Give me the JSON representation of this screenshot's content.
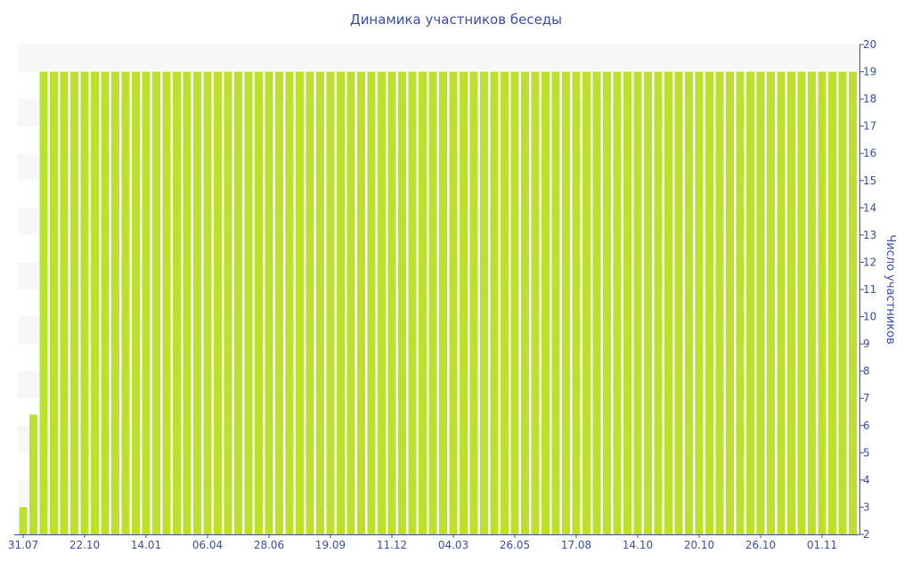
{
  "chart_data": {
    "type": "bar",
    "title": "Динамика участников беседы",
    "xlabel": "",
    "ylabel": "Число участников",
    "ylim": [
      2,
      20
    ],
    "yticks": [
      2,
      3,
      4,
      5,
      6,
      7,
      8,
      9,
      10,
      11,
      12,
      13,
      14,
      15,
      16,
      17,
      18,
      19,
      20
    ],
    "y_axis_position": "right",
    "grid": "alternating horizontal bands",
    "xtick_labels": [
      "31.07",
      "22.10",
      "14.01",
      "06.04",
      "28.06",
      "19.09",
      "11.12",
      "04.03",
      "26.05",
      "17.08",
      "14.10",
      "20.10",
      "26.10",
      "01.11"
    ],
    "xtick_every_n_bars": 6,
    "values": [
      3,
      6.4,
      19,
      19,
      19,
      19,
      19,
      19,
      19,
      19,
      19,
      19,
      19,
      19,
      19,
      19,
      19,
      19,
      19,
      19,
      19,
      19,
      19,
      19,
      19,
      19,
      19,
      19,
      19,
      19,
      19,
      19,
      19,
      19,
      19,
      19,
      19,
      19,
      19,
      19,
      19,
      19,
      19,
      19,
      19,
      19,
      19,
      19,
      19,
      19,
      19,
      19,
      19,
      19,
      19,
      19,
      19,
      19,
      19,
      19,
      19,
      19,
      19,
      19,
      19,
      19,
      19,
      19,
      19,
      19,
      19,
      19,
      19,
      19,
      19,
      19,
      19,
      19,
      19,
      19,
      19,
      19
    ],
    "bar_color": "#bde02e",
    "axis_color": "#3b4ea0"
  }
}
